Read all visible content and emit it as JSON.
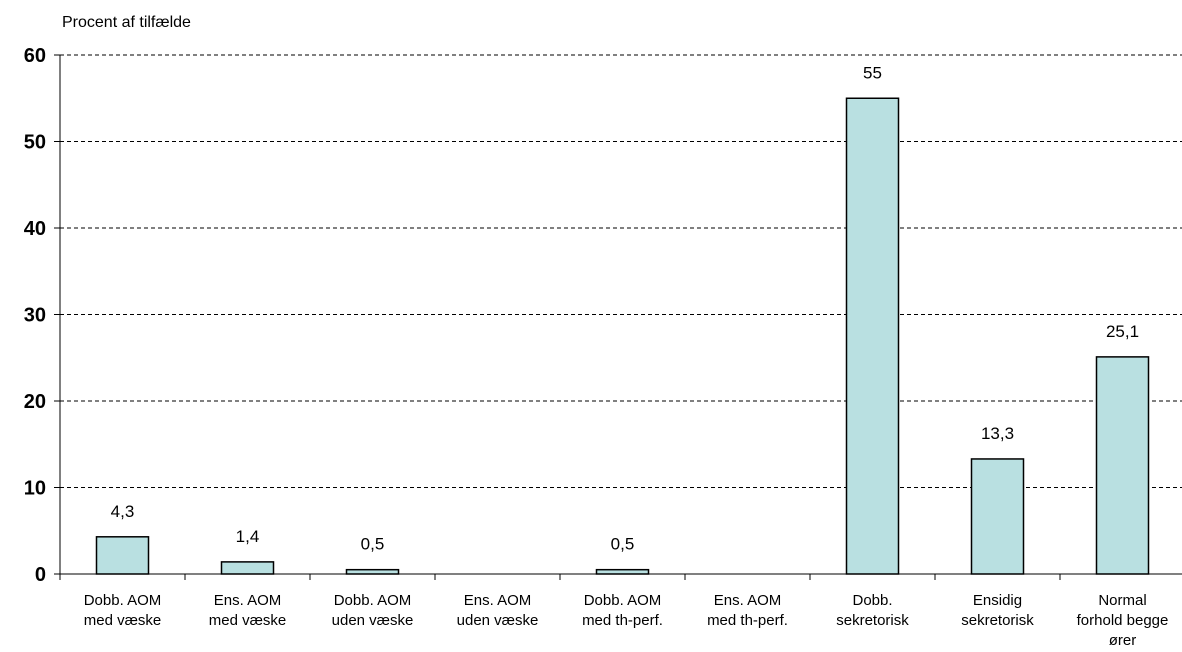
{
  "chart_data": {
    "type": "bar",
    "ylabel": "Procent af tilfælde",
    "xlabel": "",
    "title": "",
    "ylim": [
      0,
      60
    ],
    "yticks": [
      0,
      10,
      20,
      30,
      40,
      50,
      60
    ],
    "grid": true,
    "bar_color": "#b9e0e1",
    "categories": [
      [
        "Dobb. AOM",
        "med væske"
      ],
      [
        "Ens. AOM",
        "med væske"
      ],
      [
        "Dobb. AOM",
        "uden væske"
      ],
      [
        "Ens. AOM",
        "uden væske"
      ],
      [
        "Dobb. AOM",
        "med th-perf."
      ],
      [
        "Ens. AOM",
        "med th-perf."
      ],
      [
        "Dobb.",
        "sekretorisk"
      ],
      [
        "Ensidig",
        "sekretorisk"
      ],
      [
        "Normal",
        "forhold begge",
        "ører"
      ]
    ],
    "values": [
      4.3,
      1.4,
      0.5,
      0,
      0.5,
      0,
      55,
      13.3,
      25.1
    ],
    "value_labels": [
      "4,3",
      "1,4",
      "0,5",
      "",
      "0,5",
      "",
      "55",
      "13,3",
      "25,1"
    ]
  }
}
